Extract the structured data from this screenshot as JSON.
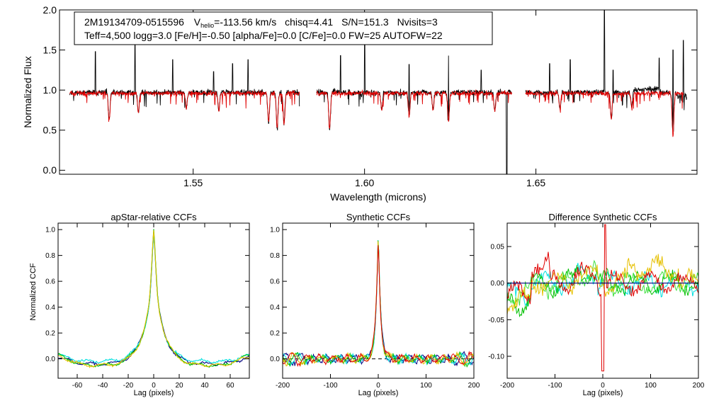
{
  "chart_data": [
    {
      "type": "line",
      "id": "spectrum",
      "title": "",
      "xlabel": "Wavelength (microns)",
      "ylabel": "Normalized Flux",
      "xlim": [
        1.511,
        1.697
      ],
      "ylim": [
        -0.05,
        2.0
      ],
      "xticks": [
        1.55,
        1.6,
        1.65
      ],
      "xtick_labels": [
        "1.55",
        "1.60",
        "1.65"
      ],
      "yticks": [
        0.0,
        0.5,
        1.0,
        1.5,
        2.0
      ],
      "ytick_labels": [
        "0.0",
        "0.5",
        "1.0",
        "1.5",
        "2.0"
      ],
      "chips": [
        [
          1.514,
          1.581
        ],
        [
          1.586,
          1.643
        ],
        [
          1.647,
          1.694
        ]
      ],
      "annotation": {
        "star_id": "2M19134709-0515596",
        "vhelio_label": "V",
        "vhelio_sub": "helio",
        "vhelio_value": "=-113.56 km/s",
        "chisq": "chisq=4.41",
        "sn": "S/N=151.3",
        "nvisits": "Nvisits=3",
        "line2": "Teff=4,500 logg=3.0 [Fe/H]=-0.50 [alpha/Fe]=0.0 [C/Fe]=0.0 FW=25 AUTOFW=22"
      },
      "series": [
        {
          "name": "observed",
          "color": "#000000",
          "continuum": 0.97
        },
        {
          "name": "model",
          "color": "#e00000",
          "continuum": 0.96
        }
      ],
      "emission_spikes": [
        {
          "x": 1.5215,
          "y": 1.48
        },
        {
          "x": 1.533,
          "y": 1.62
        },
        {
          "x": 1.544,
          "y": 1.38
        },
        {
          "x": 1.556,
          "y": 1.23
        },
        {
          "x": 1.5615,
          "y": 1.33
        },
        {
          "x": 1.566,
          "y": 1.38
        },
        {
          "x": 1.593,
          "y": 1.43
        },
        {
          "x": 1.6,
          "y": 1.65
        },
        {
          "x": 1.613,
          "y": 1.32
        },
        {
          "x": 1.6245,
          "y": 1.43
        },
        {
          "x": 1.634,
          "y": 1.25
        },
        {
          "x": 1.654,
          "y": 1.33
        },
        {
          "x": 1.66,
          "y": 1.38
        },
        {
          "x": 1.67,
          "y": 2.0
        },
        {
          "x": 1.6725,
          "y": 1.25
        },
        {
          "x": 1.686,
          "y": 1.4
        },
        {
          "x": 1.69,
          "y": 1.5
        },
        {
          "x": 1.693,
          "y": 1.62
        }
      ],
      "absorption_dips": [
        {
          "x": 1.5255,
          "y": 0.63
        },
        {
          "x": 1.534,
          "y": 0.72
        },
        {
          "x": 1.548,
          "y": 0.77
        },
        {
          "x": 1.5575,
          "y": 0.74
        },
        {
          "x": 1.572,
          "y": 0.6
        },
        {
          "x": 1.5745,
          "y": 0.52
        },
        {
          "x": 1.5765,
          "y": 0.58
        },
        {
          "x": 1.5898,
          "y": 0.5
        },
        {
          "x": 1.605,
          "y": 0.75
        },
        {
          "x": 1.613,
          "y": 0.67
        },
        {
          "x": 1.62,
          "y": 0.73
        },
        {
          "x": 1.6245,
          "y": 0.62
        },
        {
          "x": 1.638,
          "y": 0.73
        },
        {
          "x": 1.657,
          "y": 0.77
        },
        {
          "x": 1.672,
          "y": 0.64
        },
        {
          "x": 1.678,
          "y": 0.78
        },
        {
          "x": 1.69,
          "y": 0.42
        }
      ],
      "deep_drops": [
        {
          "x": 1.6415
        },
        {
          "x": 1.695
        }
      ]
    },
    {
      "type": "line",
      "id": "apstar",
      "title": "apStar-relative CCFs",
      "xlabel": "Lag (pixels)",
      "ylabel": "Normalized CCF",
      "xlim": [
        -75,
        75
      ],
      "ylim": [
        -0.15,
        1.05
      ],
      "xticks": [
        -60,
        -40,
        -20,
        0,
        20,
        40,
        60
      ],
      "xtick_labels": [
        "-60",
        "-40",
        "-20",
        "0",
        "20",
        "40",
        "60"
      ],
      "yticks": [
        0.0,
        0.2,
        0.4,
        0.6,
        0.8,
        1.0
      ],
      "ytick_labels": [
        "0.0",
        "0.2",
        "0.4",
        "0.6",
        "0.8",
        "1.0"
      ],
      "peak_width": 7,
      "series": [
        {
          "name": "navy",
          "color": "#000080",
          "peak": 0.98,
          "wing": -0.04,
          "edge": 0.01
        },
        {
          "name": "cyan",
          "color": "#00e0e0",
          "peak": 0.96,
          "wing": -0.02,
          "edge": 0.03
        },
        {
          "name": "green",
          "color": "#00c000",
          "peak": 1.0,
          "wing": -0.05,
          "edge": 0.03
        },
        {
          "name": "yellow",
          "color": "#e6c000",
          "peak": 0.99,
          "wing": -0.05,
          "edge": 0.02
        }
      ]
    },
    {
      "type": "line",
      "id": "synthetic",
      "title": "Synthetic CCFs",
      "xlabel": "Lag (pixels)",
      "ylabel": "",
      "xlim": [
        -200,
        200
      ],
      "ylim": [
        -0.15,
        1.05
      ],
      "xticks": [
        -200,
        -100,
        0,
        100,
        200
      ],
      "xtick_labels": [
        "-200",
        "-100",
        "0",
        "100",
        "200"
      ],
      "yticks": [
        0.0,
        0.2,
        0.4,
        0.6,
        0.8,
        1.0
      ],
      "ytick_labels": [
        "0.0",
        "0.2",
        "0.4",
        "0.6",
        "0.8",
        "1.0"
      ],
      "zero_line": {
        "y": 0.0,
        "style": "dashed"
      },
      "peak_width": 5,
      "series": [
        {
          "name": "navy",
          "color": "#000080",
          "peak": 1.0
        },
        {
          "name": "cyan",
          "color": "#00e0e0",
          "peak": 1.0
        },
        {
          "name": "green",
          "color": "#00c000",
          "peak": 1.0
        },
        {
          "name": "yellow",
          "color": "#e6c000",
          "peak": 1.0
        },
        {
          "name": "red",
          "color": "#e00000",
          "peak": 1.0
        }
      ]
    },
    {
      "type": "line",
      "id": "difference",
      "title": "Difference Synthetic CCFs",
      "xlabel": "Lag (pixels)",
      "ylabel": "",
      "xlim": [
        -200,
        200
      ],
      "ylim": [
        -0.13,
        0.082
      ],
      "xticks": [
        -200,
        -100,
        0,
        100,
        200
      ],
      "xtick_labels": [
        "-200",
        "-100",
        "0",
        "100",
        "200"
      ],
      "yticks": [
        -0.1,
        -0.05,
        0.0,
        0.05
      ],
      "ytick_labels": [
        "-0.10",
        "-0.05",
        "0.00",
        "0.05"
      ],
      "zero_line": {
        "y": 0.0,
        "color": "#000080",
        "style": "solid"
      },
      "series": [
        {
          "name": "cyan",
          "color": "#00e0e0"
        },
        {
          "name": "green",
          "color": "#00c000"
        },
        {
          "name": "lime",
          "color": "#40e040"
        },
        {
          "name": "yellow",
          "color": "#e6c000"
        },
        {
          "name": "red",
          "color": "#e00000",
          "center_dip": -0.12,
          "center_peak": 0.08
        }
      ]
    }
  ]
}
